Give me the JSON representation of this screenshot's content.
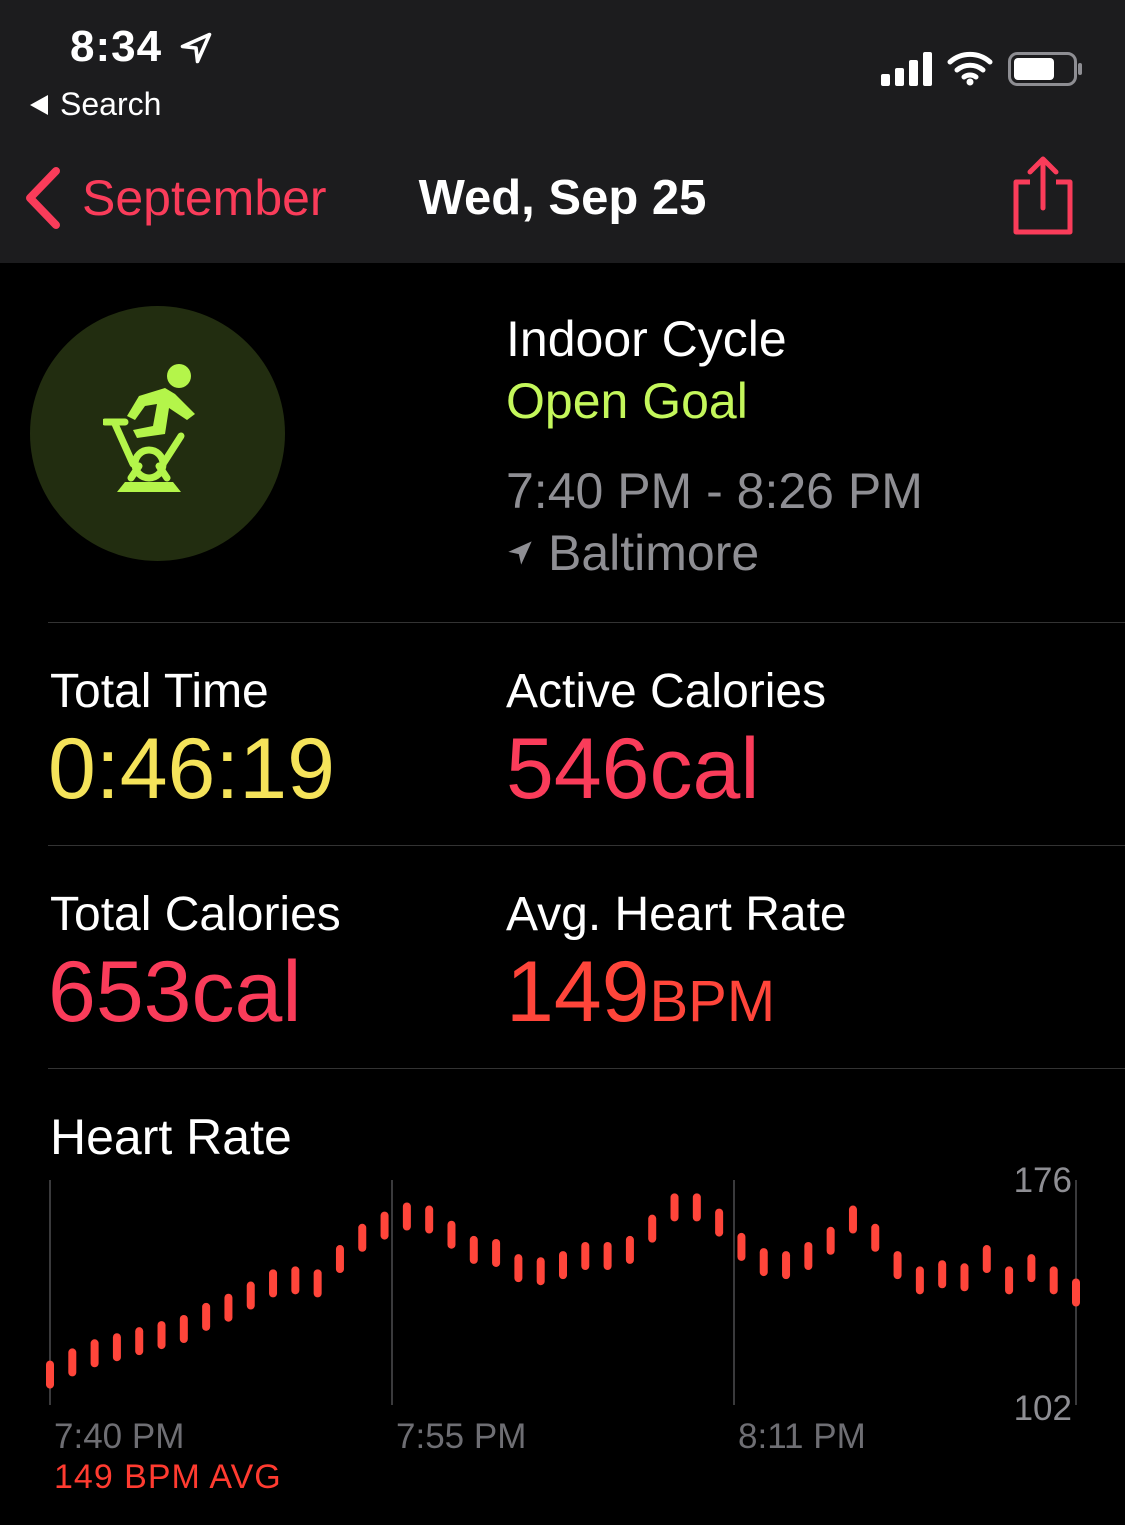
{
  "status_bar": {
    "time": "8:34",
    "back_app": "Search"
  },
  "nav": {
    "back_label": "September",
    "title": "Wed, Sep 25"
  },
  "workout": {
    "title": "Indoor Cycle",
    "goal": "Open Goal",
    "time_range": "7:40 PM - 8:26 PM",
    "location": "Baltimore"
  },
  "stats": {
    "total_time": {
      "label": "Total Time",
      "value": "0:46:19"
    },
    "active_calories": {
      "label": "Active Calories",
      "value": "546cal"
    },
    "total_calories": {
      "label": "Total Calories",
      "value": "653cal"
    },
    "avg_heart_rate": {
      "label": "Avg. Heart Rate",
      "value": "149",
      "unit": "BPM"
    }
  },
  "colors": {
    "accent": "#fa3c5a",
    "goal_green": "#c4f75b",
    "time_yellow": "#f5e35a",
    "calories_pink": "#fa3c5a",
    "hr_red": "#ff453a"
  },
  "heart_rate": {
    "title": "Heart Rate",
    "avg_label": "149 BPM AVG"
  },
  "chart_data": {
    "type": "scatter",
    "title": "Heart Rate",
    "x_tick_labels": [
      "7:40 PM",
      "7:55 PM",
      "8:11 PM"
    ],
    "y_max_label": "176",
    "y_min_label": "102",
    "ylim": [
      102,
      176
    ],
    "x_unit": "minutes after 7:40 PM",
    "x": [
      0,
      1,
      2,
      3,
      4,
      5,
      6,
      7,
      8,
      9,
      10,
      11,
      12,
      13,
      14,
      15,
      16,
      17,
      18,
      19,
      20,
      21,
      22,
      23,
      24,
      25,
      26,
      27,
      28,
      29,
      30,
      31,
      32,
      33,
      34,
      35,
      36,
      37,
      38,
      39,
      40,
      41,
      42,
      43,
      44,
      45,
      46
    ],
    "values": [
      112,
      116,
      119,
      121,
      123,
      125,
      127,
      131,
      134,
      138,
      142,
      143,
      142,
      150,
      157,
      161,
      164,
      163,
      158,
      153,
      152,
      147,
      146,
      148,
      151,
      151,
      153,
      160,
      167,
      167,
      162,
      154,
      149,
      148,
      151,
      156,
      163,
      157,
      148,
      143,
      145,
      144,
      150,
      143,
      147,
      143,
      139
    ]
  }
}
